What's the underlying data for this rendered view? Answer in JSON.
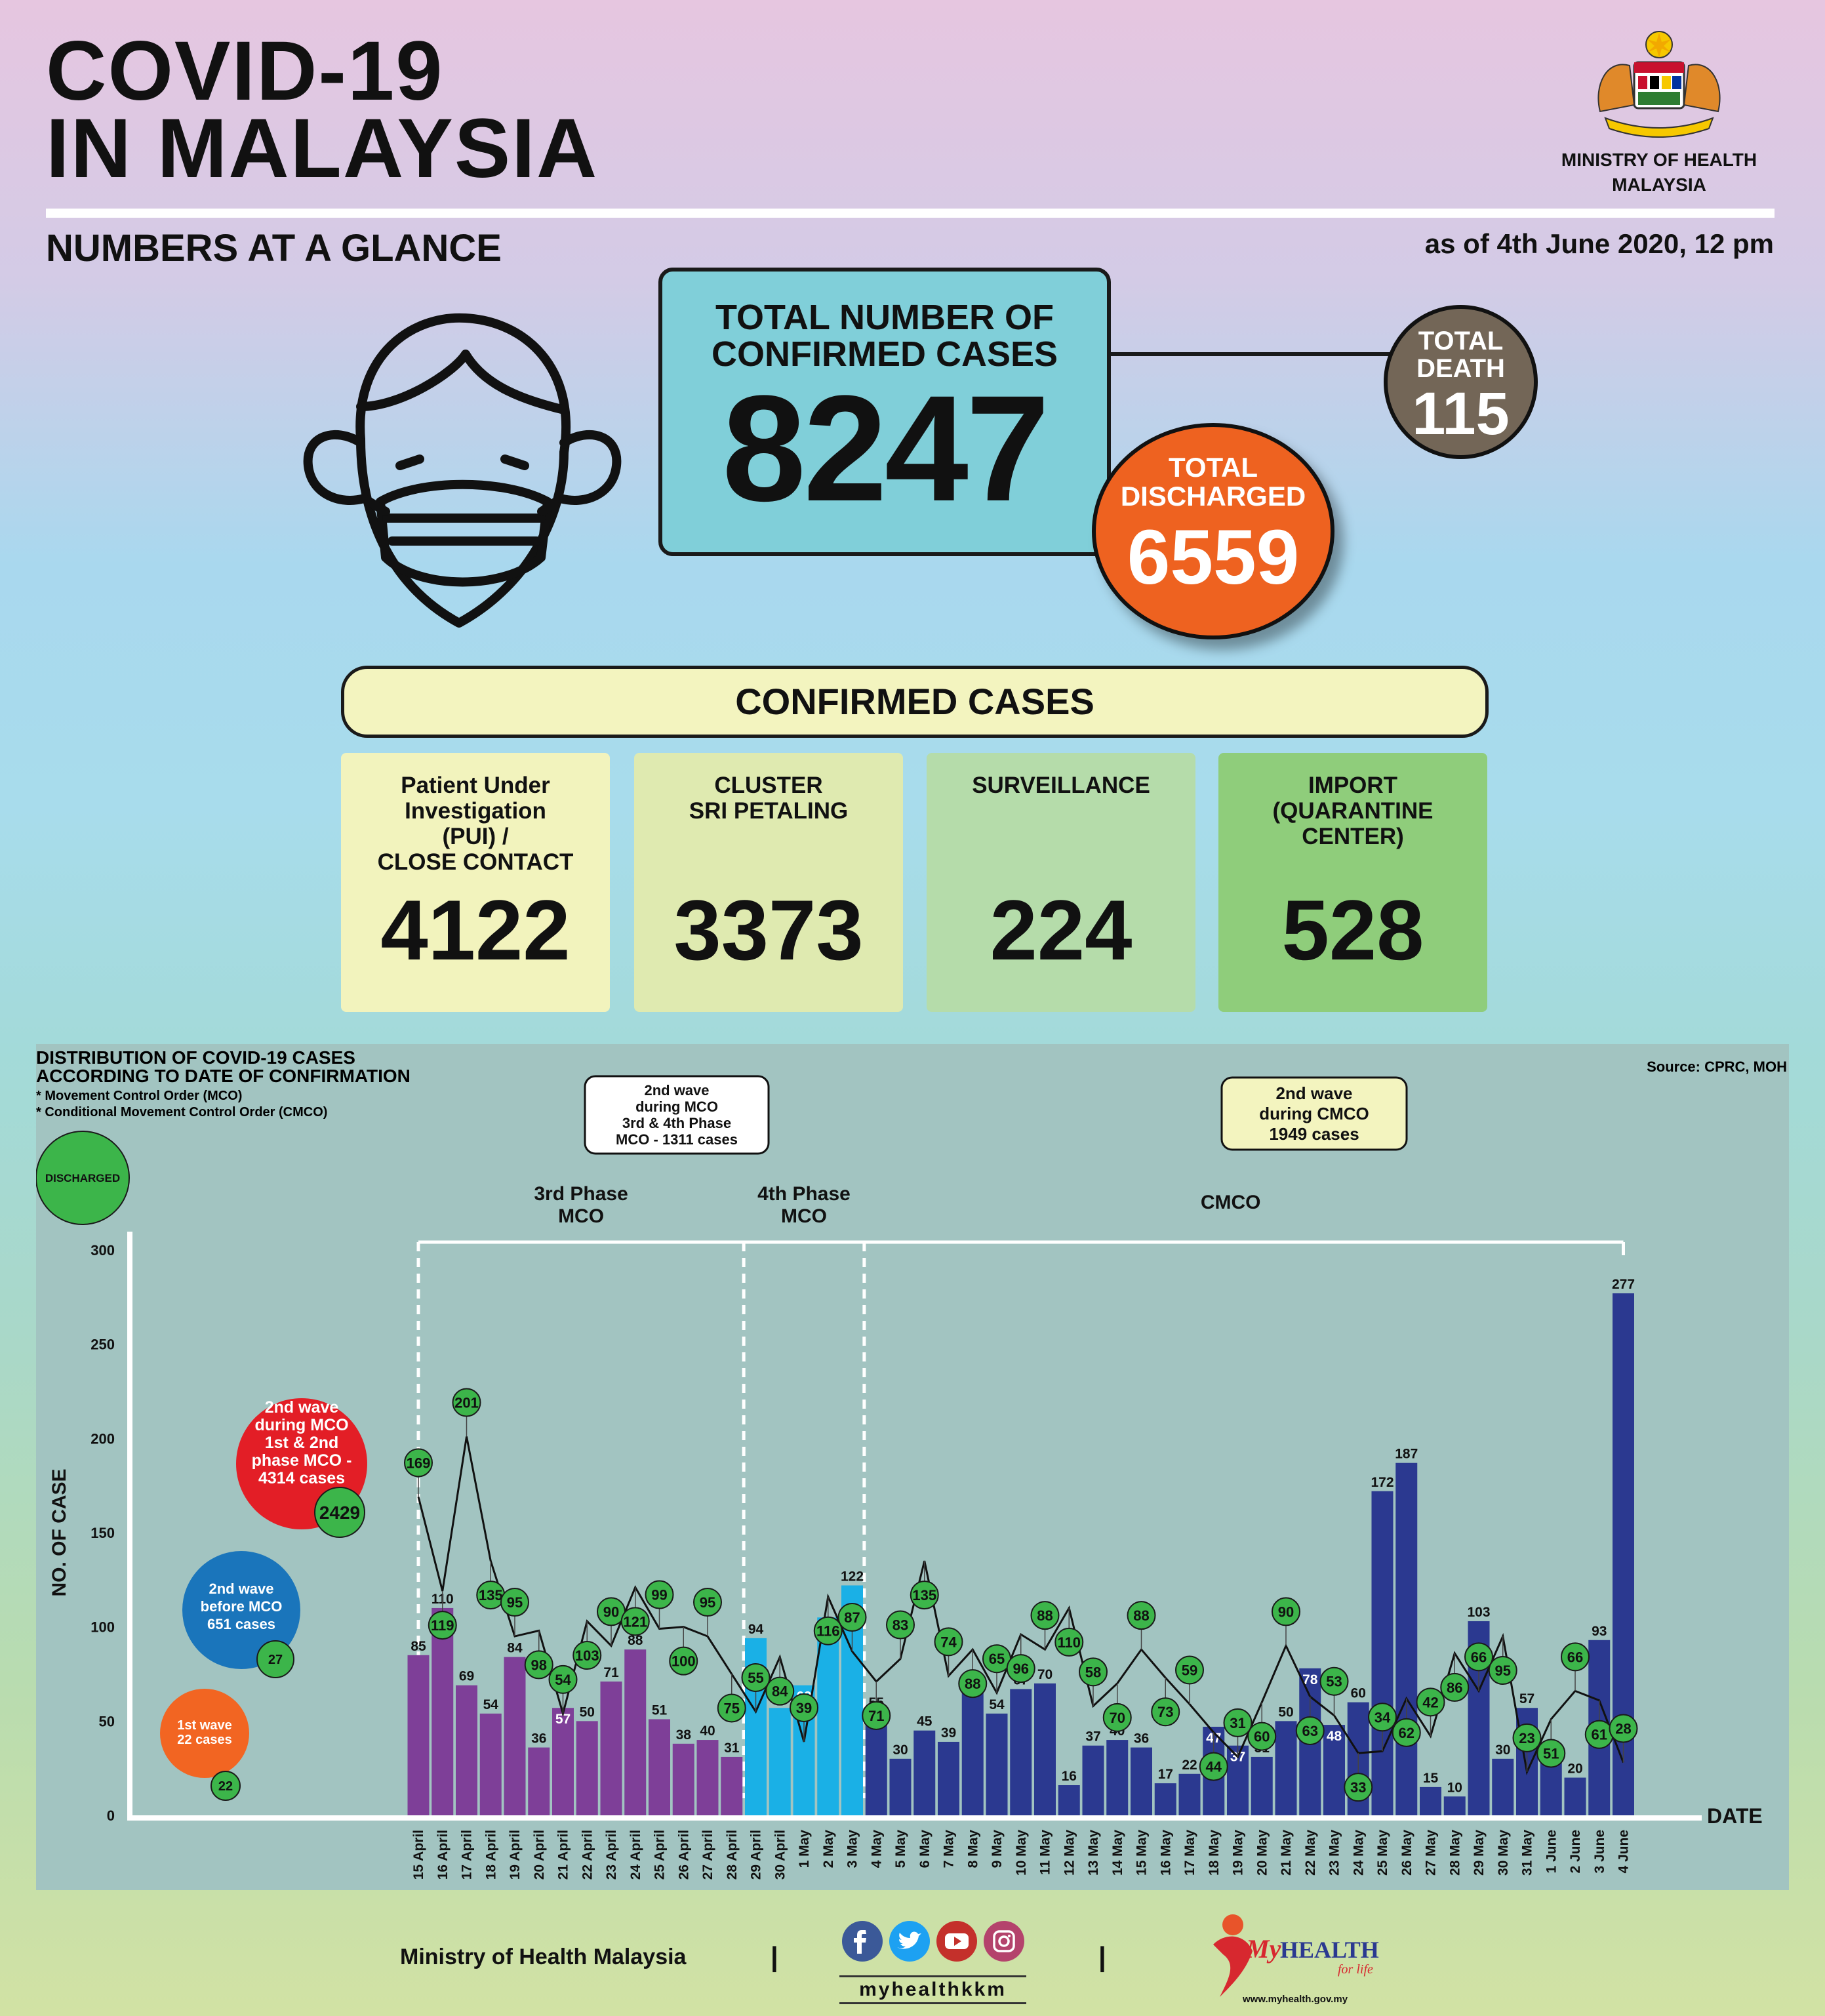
{
  "header": {
    "title_line1": "COVID-19",
    "title_line2": "IN MALAYSIA",
    "subtitle": "NUMBERS AT A GLANCE",
    "as_of": "as of 4th June 2020, 12 pm",
    "ministry_line1": "MINISTRY OF HEALTH",
    "ministry_line2": "MALAYSIA",
    "crest_icon": "malaysia-coat-of-arms-icon"
  },
  "totals": {
    "confirmed_label_line1": "TOTAL NUMBER OF",
    "confirmed_label_line2": "CONFIRMED CASES",
    "confirmed_value": "8247",
    "death_label_line1": "TOTAL",
    "death_label_line2": "DEATH",
    "death_value": "115",
    "discharged_label_line1": "TOTAL",
    "discharged_label_line2": "DISCHARGED",
    "discharged_value": "6559"
  },
  "confirmed_cases": {
    "header": "CONFIRMED CASES",
    "boxes": [
      {
        "label_lines": [
          "Patient Under",
          "Investigation",
          "(PUI) /",
          "CLOSE CONTACT"
        ],
        "value": "4122",
        "color": "#f2f3bd"
      },
      {
        "label_lines": [
          "CLUSTER",
          "SRI PETALING"
        ],
        "value": "3373",
        "color": "#dfeab0"
      },
      {
        "label_lines": [
          "SURVEILLANCE"
        ],
        "value": "224",
        "color": "#b5dcaa"
      },
      {
        "label_lines": [
          "IMPORT",
          "(QUARANTINE",
          "CENTER)"
        ],
        "value": "528",
        "color": "#8fcd7b"
      }
    ]
  },
  "chart_data": {
    "type": "bar",
    "title_line1": "DISTRIBUTION OF COVID-19 CASES",
    "title_line2": "ACCORDING TO DATE OF CONFIRMATION",
    "notes": [
      "* Movement Control Order (MCO)",
      "* Conditional Movement Control Order (CMCO)"
    ],
    "source": "Source: CPRC, MOH",
    "ylabel": "NO. OF CASE",
    "xlabel": "DATE",
    "ylim": [
      0,
      300
    ],
    "yticks": [
      0,
      50,
      100,
      150,
      200,
      250,
      300
    ],
    "legend_discharged": "DISCHARGED",
    "categories": [
      "15 April",
      "16 April",
      "17 April",
      "18 April",
      "19 April",
      "20 April",
      "21 April",
      "22 April",
      "23 April",
      "24 April",
      "25 April",
      "26 April",
      "27 April",
      "28 April",
      "29 April",
      "30 April",
      "1 May",
      "2 May",
      "3 May",
      "4 May",
      "5 May",
      "6 May",
      "7 May",
      "8 May",
      "9 May",
      "10 May",
      "11 May",
      "12 May",
      "13 May",
      "14 May",
      "15 May",
      "16 May",
      "17 May",
      "18 May",
      "19 May",
      "20 May",
      "21 May",
      "22 May",
      "23 May",
      "24 May",
      "25 May",
      "26 May",
      "27 May",
      "28 May",
      "29 May",
      "30 May",
      "31 May",
      "1 June",
      "2 June",
      "3 June",
      "4 June"
    ],
    "series": [
      {
        "name": "Confirmed",
        "values": [
          85,
          110,
          69,
          54,
          84,
          36,
          57,
          50,
          71,
          88,
          51,
          38,
          40,
          31,
          94,
          57,
          69,
          105,
          122,
          55,
          30,
          45,
          39,
          68,
          54,
          67,
          70,
          16,
          37,
          40,
          36,
          17,
          22,
          47,
          37,
          31,
          50,
          78,
          48,
          60,
          172,
          187,
          15,
          10,
          103,
          30,
          57,
          38,
          20,
          93,
          277
        ]
      },
      {
        "name": "DISCHARGED",
        "values": [
          169,
          119,
          201,
          135,
          95,
          98,
          54,
          103,
          90,
          121,
          99,
          100,
          95,
          75,
          55,
          84,
          39,
          116,
          87,
          71,
          83,
          135,
          74,
          88,
          65,
          96,
          88,
          110,
          58,
          70,
          88,
          73,
          59,
          44,
          31,
          60,
          90,
          63,
          53,
          33,
          34,
          62,
          42,
          86,
          66,
          95,
          23,
          51,
          66,
          61,
          28
        ]
      }
    ],
    "bar_colors": {
      "phase3": "#7e3f98",
      "phase4": "#1ab0e6",
      "cmco": "#2b3990",
      "discharged": "#3cb54a"
    },
    "phase_counts": [
      14,
      5,
      32
    ],
    "phases": [
      {
        "label_line1": "3rd Phase",
        "label_line2": "MCO"
      },
      {
        "label_line1": "4th Phase",
        "label_line2": "MCO"
      },
      {
        "label_line1": "CMCO",
        "label_line2": ""
      }
    ],
    "wave_boxes": [
      {
        "lines": [
          "2nd wave",
          "during MCO",
          "3rd & 4th Phase",
          "MCO - 1311 cases"
        ]
      },
      {
        "lines": [
          "2nd wave",
          "during CMCO",
          "1949 cases"
        ]
      }
    ],
    "waves": [
      {
        "lines": [
          "2nd wave",
          "during MCO",
          "1st & 2nd",
          "phase MCO -",
          "4314 cases"
        ],
        "discharged": "2429",
        "color": "#e31e26"
      },
      {
        "lines": [
          "2nd wave",
          "before MCO",
          "651 cases"
        ],
        "discharged": "27",
        "color": "#1a75bb"
      },
      {
        "lines": [
          "1st wave",
          "22 cases"
        ],
        "discharged": "22",
        "color": "#f26522"
      }
    ]
  },
  "footer": {
    "organization": "Ministry of Health Malaysia",
    "separator": "|",
    "social_handle": "myhealthkkm",
    "social_icons": [
      "facebook-icon",
      "twitter-icon",
      "youtube-icon",
      "instagram-icon"
    ],
    "brand_my": "My",
    "brand_health": "HEALTH",
    "brand_tagline": "for life",
    "url": "www.myhealth.gov.my"
  }
}
